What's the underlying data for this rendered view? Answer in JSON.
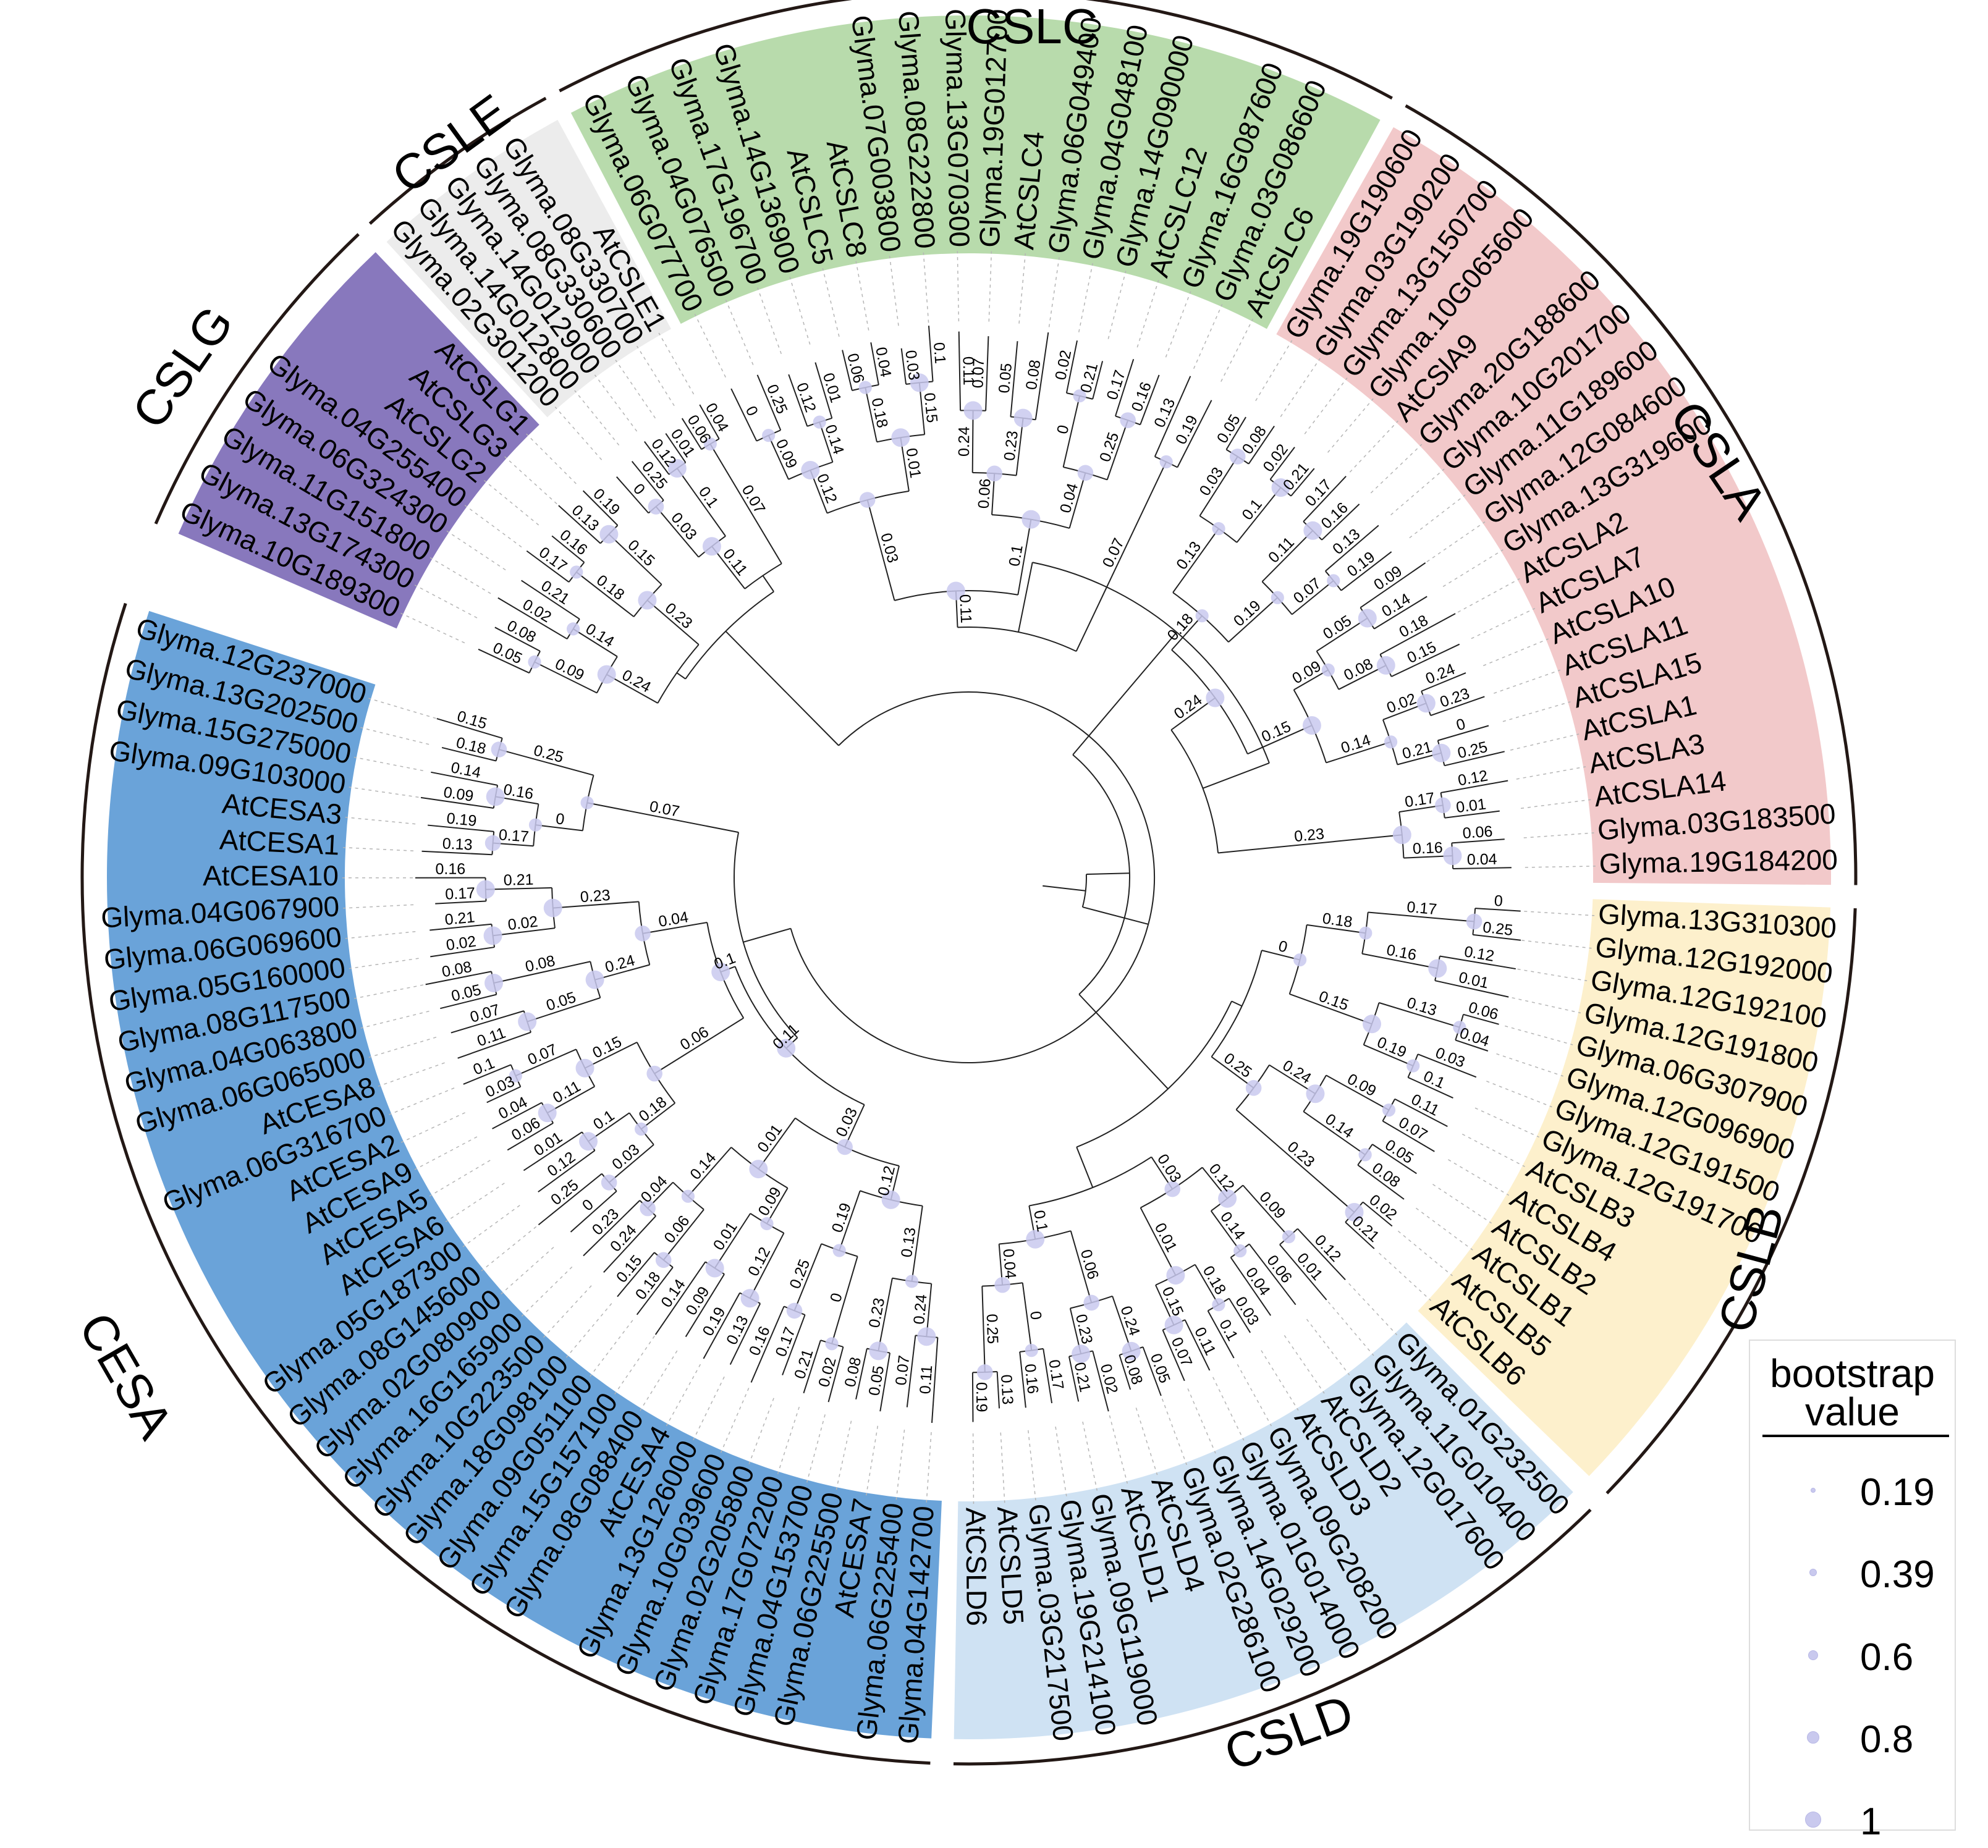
{
  "figure": {
    "legend": {
      "title_line1": "bootstrap",
      "title_line2": "value",
      "items": [
        "0.19",
        "0.39",
        "0.6",
        "0.8",
        "1"
      ]
    },
    "colors": {
      "CSLC": "#b8dbac",
      "CSLE": "#ececec",
      "CSLG": "#8878bd",
      "CSLA": "#f2c9ca",
      "CSLB": "#fdf0cc",
      "CSLD": "#cfe2f3",
      "CESA": "#6aa3d9",
      "bootstrap_dot": "#c9c9ee"
    }
  },
  "clades": [
    {
      "name": "CSLC",
      "tips": [
        "Glyma.06G077700",
        "Glyma.04G076500",
        "Glyma.17G196700",
        "Glyma.14G136900",
        "AtCSLC5",
        "AtCSLC8",
        "Glyma.07G003800",
        "Glyma.08G222800",
        "Glyma.13G070300",
        "Glyma.19G012700",
        "AtCSLC4",
        "Glyma.06G049400",
        "Glyma.04G048100",
        "Glyma.14G090000",
        "AtCSLC12",
        "Glyma.16G087600",
        "Glyma.03G086600",
        "AtCSLC6"
      ]
    },
    {
      "name": "CSLA",
      "tips": [
        "Glyma.19G190600",
        "Glyma.03G190200",
        "Glyma.13G150700",
        "Glyma.10G065600",
        "AtCSlA9",
        "Glyma.20G188600",
        "Glyma.10G201700",
        "Glyma.11G189600",
        "Glyma.12G084600",
        "Glyma.13G319600",
        "AtCSLA2",
        "AtCSLA7",
        "AtCSLA10",
        "AtCSLA11",
        "AtCSLA15",
        "AtCSLA1",
        "AtCSLA3",
        "AtCSLA14",
        "Glyma.03G183500",
        "Glyma.19G184200"
      ]
    },
    {
      "name": "CSLB",
      "tips": [
        "Glyma.13G310300",
        "Glyma.12G192000",
        "Glyma.12G192100",
        "Glyma.12G191800",
        "Glyma.06G307900",
        "Glyma.12G096900",
        "Glyma.12G191500",
        "Glyma.12G191700",
        "AtCSLB3",
        "AtCSLB4",
        "AtCSLB2",
        "AtCSLB1",
        "AtCSLB5",
        "AtCSLB6"
      ]
    },
    {
      "name": "CSLD",
      "tips": [
        "Glyma.01G232500",
        "Glyma.11G010400",
        "Glyma.12G017600",
        "AtCSLD2",
        "AtCSLD3",
        "Glyma.09G208200",
        "Glyma.01G014000",
        "Glyma.14G029200",
        "Glyma.02G286100",
        "AtCSLD4",
        "AtCSLD1",
        "Glyma.09G119000",
        "Glyma.19G214100",
        "Glyma.03G217500",
        "AtCSLD5",
        "AtCSLD6"
      ]
    },
    {
      "name": "CESA",
      "tips": [
        "Glyma.04G142700",
        "Glyma.06G225400",
        "AtCESA7",
        "Glyma.06G225500",
        "Glyma.04G153700",
        "Glyma.17G072200",
        "Glyma.02G205800",
        "Glyma.10G039600",
        "Glyma.13G126000",
        "AtCESA4",
        "Glyma.08G088400",
        "Glyma.15G157100",
        "Glyma.09G051100",
        "Glyma.18G098100",
        "Glyma.10G223500",
        "Glyma.16G165900",
        "Glyma.02G080900",
        "Glyma.08G145600",
        "Glyma.05G187300",
        "AtCESA6",
        "AtCESA5",
        "AtCESA9",
        "AtCESA2",
        "Glyma.06G316700",
        "AtCESA8",
        "Glyma.06G065000",
        "Glyma.04G063800",
        "Glyma.08G117500",
        "Glyma.05G160000",
        "Glyma.06G069600",
        "Glyma.04G067900",
        "AtCESA10",
        "AtCESA1",
        "AtCESA3",
        "Glyma.09G103000",
        "Glyma.15G275000",
        "Glyma.13G202500",
        "Glyma.12G237000"
      ]
    },
    {
      "name": "CSLG",
      "tips": [
        "Glyma.10G189300",
        "Glyma.13G174300",
        "Glyma.11G151800",
        "Glyma.06G324300",
        "Glyma.04G255400",
        "AtCSLG2",
        "AtCSLG3",
        "AtCSLG1"
      ]
    },
    {
      "name": "CSLE",
      "tips": [
        "Glyma.02G301200",
        "Glyma.14G012800",
        "Glyma.14G012900",
        "Glyma.08G330600",
        "Glyma.08G330700",
        "AtCSLE1"
      ]
    }
  ],
  "branch_lengths": [
    {
      "label": "0",
      "bootstrap": 0.6
    },
    {
      "label": "0.25",
      "bootstrap": 0.8
    },
    {
      "label": "0.12",
      "bootstrap": 1
    },
    {
      "label": "0.01",
      "bootstrap": 1
    },
    {
      "label": "0.06",
      "bootstrap": 0.8
    },
    {
      "label": "0.04",
      "bootstrap": 0.8
    },
    {
      "label": "0.03",
      "bootstrap": 0.8
    },
    {
      "label": "0.1",
      "bootstrap": 1
    },
    {
      "label": "0.11",
      "bootstrap": 1
    },
    {
      "label": "0.07",
      "bootstrap": 0.6
    },
    {
      "label": "0.05",
      "bootstrap": 1
    },
    {
      "label": "0.08",
      "bootstrap": 1
    },
    {
      "label": "0.02",
      "bootstrap": 1
    },
    {
      "label": "0.21",
      "bootstrap": 1
    },
    {
      "label": "0.17",
      "bootstrap": 0.8
    },
    {
      "label": "0.16",
      "bootstrap": 1
    },
    {
      "label": "0.13",
      "bootstrap": 0.6
    },
    {
      "label": "0.19",
      "bootstrap": 0.6
    },
    {
      "label": "0.09",
      "bootstrap": 0.6
    },
    {
      "label": "0.14",
      "bootstrap": 0.6
    },
    {
      "label": "0.18",
      "bootstrap": 0.6
    },
    {
      "label": "0.15",
      "bootstrap": 1
    },
    {
      "label": "0.24",
      "bootstrap": 1
    },
    {
      "label": "0.23",
      "bootstrap": 1
    }
  ]
}
